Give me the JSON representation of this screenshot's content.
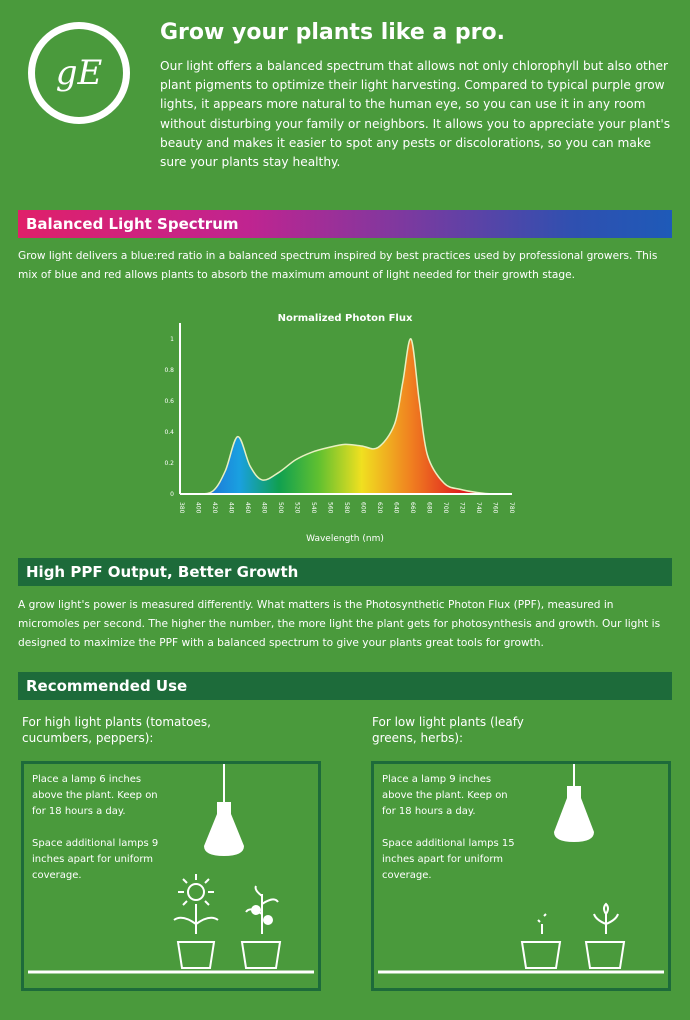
{
  "brand": {
    "logo_text": "GE"
  },
  "header": {
    "title": "Grow your plants like a pro.",
    "intro": "Our light offers a balanced spectrum that allows not only chlorophyll but also other plant pigments to optimize their light harvesting. Compared to typical purple grow lights, it appears more natural to the human eye, so you can use it in any room without disturbing your family or neighbors. It allows you to appreciate your plant's beauty and makes it easier to spot any pests or discolorations, so you can make sure your plants stay healthy."
  },
  "spectrum": {
    "heading": "Balanced Light Spectrum",
    "text": "Grow light delivers a blue:red ratio in a balanced spectrum inspired by best practices used by professional growers. This mix of blue and red allows plants to absorb the maximum amount of light needed for their growth stage."
  },
  "chart_data": {
    "type": "area",
    "title": "Normalized Photon Flux",
    "xlabel": "Wavelength (nm)",
    "ylabel": "",
    "xlim": [
      380,
      780
    ],
    "ylim": [
      0,
      1
    ],
    "yticks": [
      "0",
      "0.2",
      "0.4",
      "0.6",
      "0.8",
      "1"
    ],
    "xticks": [
      "380",
      "400",
      "420",
      "440",
      "460",
      "480",
      "500",
      "520",
      "540",
      "560",
      "580",
      "600",
      "620",
      "640",
      "660",
      "680",
      "700",
      "720",
      "740",
      "760",
      "780"
    ],
    "x": [
      380,
      400,
      420,
      435,
      450,
      465,
      480,
      500,
      520,
      540,
      560,
      580,
      600,
      620,
      640,
      650,
      660,
      670,
      680,
      700,
      720,
      740,
      760,
      780
    ],
    "y": [
      0,
      0,
      0.02,
      0.15,
      0.37,
      0.18,
      0.09,
      0.14,
      0.22,
      0.27,
      0.3,
      0.32,
      0.31,
      0.3,
      0.45,
      0.72,
      1.0,
      0.6,
      0.25,
      0.07,
      0.03,
      0.01,
      0,
      0
    ],
    "grid": false
  },
  "ppf": {
    "heading": "High PPF Output, Better Growth",
    "text": "A grow light's power is measured differently. What matters is the Photosynthetic Photon Flux (PPF), measured in micromoles per second. The higher the number, the more light the plant gets for photosynthesis and growth. Our light is designed to maximize the PPF with a balanced spectrum to give your plants great tools for growth."
  },
  "use": {
    "heading": "Recommended Use",
    "high": {
      "label": "For high light plants (tomatoes, cucumbers, peppers):",
      "p1": "Place a lamp 6 inches above the plant. Keep on for 18 hours a day.",
      "p2": "Space additional lamps 9 inches apart for uniform coverage."
    },
    "low": {
      "label": "For low light plants (leafy greens, herbs):",
      "p1": "Place a lamp 9 inches above the plant. Keep on for 18 hours a day.",
      "p2": "Space additional lamps 15 inches apart for uniform coverage."
    }
  }
}
